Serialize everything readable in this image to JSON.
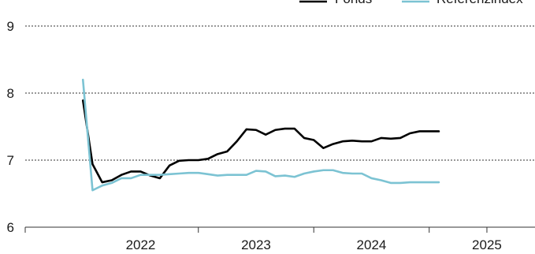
{
  "chart_data": {
    "type": "line",
    "title": "",
    "xlabel": "",
    "ylabel": "",
    "ylim": [
      6,
      9
    ],
    "yticks": [
      6,
      7,
      8,
      9
    ],
    "xlim": [
      "2021-07",
      "2025-12"
    ],
    "xticks": [
      "2022",
      "2023",
      "2024",
      "2025"
    ],
    "grid": true,
    "legend": "top-right",
    "series": [
      {
        "name": "Fonds",
        "color": "#000000",
        "x": [
          "2022-01",
          "2022-02",
          "2022-03",
          "2022-04",
          "2022-05",
          "2022-06",
          "2022-07",
          "2022-08",
          "2022-09",
          "2022-10",
          "2022-11",
          "2022-12",
          "2023-01",
          "2023-02",
          "2023-03",
          "2023-04",
          "2023-05",
          "2023-06",
          "2023-07",
          "2023-08",
          "2023-09",
          "2023-10",
          "2023-11",
          "2023-12",
          "2024-01",
          "2024-02",
          "2024-03",
          "2024-04",
          "2024-05",
          "2024-06",
          "2024-07",
          "2024-08",
          "2024-09",
          "2024-10",
          "2024-11",
          "2024-12",
          "2025-01",
          "2025-02"
        ],
        "values": [
          7.89,
          6.94,
          6.67,
          6.7,
          6.78,
          6.83,
          6.83,
          6.77,
          6.73,
          6.92,
          6.99,
          7.0,
          7.0,
          7.02,
          7.09,
          7.13,
          7.28,
          7.46,
          7.45,
          7.38,
          7.45,
          7.47,
          7.47,
          7.33,
          7.3,
          7.18,
          7.24,
          7.28,
          7.29,
          7.28,
          7.28,
          7.33,
          7.32,
          7.33,
          7.4,
          7.43,
          7.43,
          7.43
        ]
      },
      {
        "name": "Referenzindex",
        "color": "#7cc3d3",
        "x": [
          "2022-01",
          "2022-02",
          "2022-03",
          "2022-04",
          "2022-05",
          "2022-06",
          "2022-07",
          "2022-08",
          "2022-09",
          "2022-10",
          "2022-11",
          "2022-12",
          "2023-01",
          "2023-02",
          "2023-03",
          "2023-04",
          "2023-05",
          "2023-06",
          "2023-07",
          "2023-08",
          "2023-09",
          "2023-10",
          "2023-11",
          "2023-12",
          "2024-01",
          "2024-02",
          "2024-03",
          "2024-04",
          "2024-05",
          "2024-06",
          "2024-07",
          "2024-08",
          "2024-09",
          "2024-10",
          "2024-11",
          "2024-12",
          "2025-01",
          "2025-02"
        ],
        "values": [
          8.2,
          6.55,
          6.62,
          6.66,
          6.73,
          6.73,
          6.78,
          6.78,
          6.78,
          6.79,
          6.8,
          6.81,
          6.81,
          6.79,
          6.77,
          6.78,
          6.78,
          6.78,
          6.84,
          6.83,
          6.76,
          6.77,
          6.75,
          6.8,
          6.83,
          6.85,
          6.85,
          6.81,
          6.8,
          6.8,
          6.73,
          6.7,
          6.66,
          6.66,
          6.67,
          6.67,
          6.67,
          6.67
        ]
      }
    ]
  }
}
